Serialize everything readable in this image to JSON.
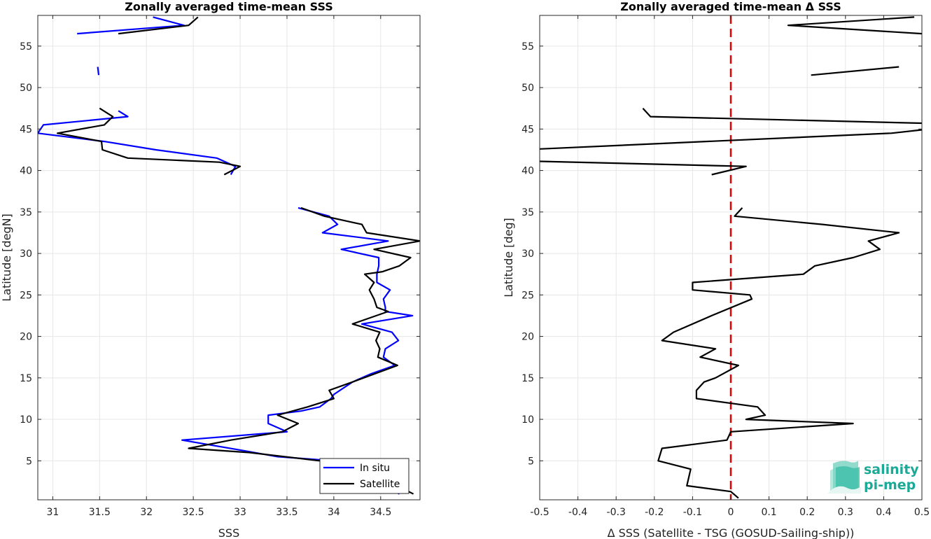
{
  "colors": {
    "in_situ": "#0000ff",
    "satellite": "#000000",
    "zero_line": "#e00000",
    "grid": "#e6e6e6",
    "logo": "#1aaa97"
  },
  "logo": {
    "line1": "salinity",
    "line2": "pi-mep",
    "icon": "wave-stack-icon"
  },
  "chart_data": [
    {
      "type": "line",
      "title": "Zonally averaged time-mean SSS",
      "xlabel": "SSS",
      "ylabel": "Latitude [degN]",
      "xlim": [
        30.84,
        34.92
      ],
      "ylim": [
        0.3,
        58.7
      ],
      "xticks": [
        31,
        31.5,
        32,
        32.5,
        33,
        33.5,
        34,
        34.5
      ],
      "xtick_labels": [
        "31",
        "31.5",
        "32",
        "32.5",
        "33",
        "33.5",
        "34",
        "34.5"
      ],
      "yticks": [
        5,
        10,
        15,
        20,
        25,
        30,
        35,
        40,
        45,
        50,
        55
      ],
      "ytick_labels": [
        "5",
        "10",
        "15",
        "20",
        "25",
        "30",
        "35",
        "40",
        "45",
        "50",
        "55"
      ],
      "grid": true,
      "legend": {
        "placement": "bottom-right",
        "entries": [
          "In situ",
          "Satellite"
        ]
      },
      "series": [
        {
          "name": "In situ",
          "color": "#0000ff",
          "segments": [
            [
              [
                32.07,
                58.5
              ],
              [
                32.4,
                57.5
              ],
              [
                31.26,
                56.5
              ]
            ],
            [
              [
                31.48,
                52.5
              ],
              [
                31.49,
                51.5
              ]
            ],
            [
              [
                31.7,
                47.2
              ],
              [
                31.8,
                46.5
              ],
              [
                30.9,
                45.5
              ],
              [
                30.84,
                44.5
              ],
              [
                31.55,
                43.5
              ],
              [
                32.1,
                42.5
              ],
              [
                32.75,
                41.5
              ],
              [
                32.95,
                40.5
              ],
              [
                32.9,
                39.5
              ]
            ],
            [
              [
                33.62,
                35.5
              ],
              [
                33.95,
                34.5
              ],
              [
                34.04,
                33.5
              ],
              [
                33.88,
                32.5
              ],
              [
                34.58,
                31.5
              ],
              [
                34.08,
                30.5
              ],
              [
                34.48,
                29.5
              ],
              [
                34.48,
                28.5
              ],
              [
                34.46,
                27.5
              ],
              [
                34.46,
                26.5
              ],
              [
                34.6,
                25.6
              ],
              [
                34.53,
                24.5
              ],
              [
                34.55,
                23.5
              ],
              [
                34.55,
                23.0
              ],
              [
                34.84,
                22.5
              ],
              [
                34.3,
                21.5
              ],
              [
                34.62,
                20.5
              ],
              [
                34.69,
                19.5
              ],
              [
                34.55,
                18.5
              ],
              [
                34.53,
                17.5
              ],
              [
                34.65,
                16.5
              ],
              [
                34.4,
                15.5
              ],
              [
                34.2,
                14.5
              ],
              [
                34.0,
                13.0
              ],
              [
                33.97,
                12.5
              ],
              [
                33.85,
                11.5
              ],
              [
                33.65,
                11.0
              ],
              [
                33.3,
                10.5
              ],
              [
                33.3,
                9.5
              ],
              [
                33.5,
                8.5
              ],
              [
                32.38,
                7.5
              ],
              [
                33.05,
                6.2
              ],
              [
                33.4,
                5.5
              ],
              [
                34.0,
                5.0
              ],
              [
                34.7,
                1.0
              ]
            ]
          ]
        },
        {
          "name": "Satellite",
          "color": "#000000",
          "segments": [
            [
              [
                32.55,
                58.5
              ],
              [
                32.45,
                57.5
              ],
              [
                31.7,
                56.5
              ]
            ],
            [
              [
                31.5,
                47.5
              ],
              [
                31.64,
                46.5
              ],
              [
                31.55,
                45.5
              ],
              [
                31.05,
                44.5
              ],
              [
                31.52,
                43.5
              ],
              [
                31.53,
                42.5
              ],
              [
                31.8,
                41.5
              ],
              [
                32.78,
                41.0
              ],
              [
                33.0,
                40.5
              ],
              [
                32.83,
                39.5
              ]
            ],
            [
              [
                33.65,
                35.5
              ],
              [
                33.9,
                34.5
              ],
              [
                34.3,
                33.5
              ],
              [
                34.35,
                32.5
              ],
              [
                34.92,
                31.5
              ],
              [
                34.43,
                30.5
              ],
              [
                34.82,
                29.5
              ],
              [
                34.7,
                28.5
              ],
              [
                34.52,
                27.8
              ],
              [
                34.33,
                27.5
              ],
              [
                34.43,
                26.5
              ],
              [
                34.38,
                25.6
              ],
              [
                34.43,
                24.5
              ],
              [
                34.46,
                23.5
              ],
              [
                34.58,
                23.0
              ],
              [
                34.2,
                21.5
              ],
              [
                34.49,
                20.5
              ],
              [
                34.45,
                19.5
              ],
              [
                34.49,
                18.5
              ],
              [
                34.47,
                17.5
              ],
              [
                34.68,
                16.5
              ],
              [
                34.2,
                14.5
              ],
              [
                33.95,
                13.5
              ],
              [
                34.0,
                12.5
              ],
              [
                33.72,
                11.5
              ],
              [
                33.4,
                10.5
              ],
              [
                33.62,
                9.5
              ],
              [
                33.45,
                8.5
              ],
              [
                32.9,
                7.5
              ],
              [
                32.45,
                6.5
              ],
              [
                33.1,
                6.0
              ],
              [
                33.85,
                5.0
              ],
              [
                34.5,
                3.0
              ],
              [
                34.85,
                1.0
              ]
            ]
          ]
        }
      ]
    },
    {
      "type": "line",
      "title": "Zonally averaged time-mean Δ SSS",
      "xlabel": "Δ SSS (Satellite - TSG (GOSUD-Sailing-ship))",
      "ylabel": "Latitude [deg]",
      "xlim": [
        -0.5,
        0.5
      ],
      "ylim": [
        0.3,
        58.7
      ],
      "xticks": [
        -0.5,
        -0.4,
        -0.3,
        -0.2,
        -0.1,
        0,
        0.1,
        0.2,
        0.3,
        0.4,
        0.5
      ],
      "xtick_labels": [
        "-0.5",
        "-0.4",
        "-0.3",
        "-0.2",
        "-0.1",
        "0",
        "0.1",
        "0.2",
        "0.3",
        "0.4",
        "0.5"
      ],
      "yticks": [
        5,
        10,
        15,
        20,
        25,
        30,
        35,
        40,
        45,
        50,
        55
      ],
      "ytick_labels": [
        "5",
        "10",
        "15",
        "20",
        "25",
        "30",
        "35",
        "40",
        "45",
        "50",
        "55"
      ],
      "grid": true,
      "zero_line": {
        "x": 0,
        "style": "dashed"
      },
      "series": [
        {
          "name": "",
          "color": "#000000",
          "segments": [
            [
              [
                0.48,
                58.5
              ],
              [
                0.15,
                57.5
              ],
              [
                0.5,
                56.5
              ]
            ],
            [
              [
                0.44,
                52.5
              ],
              [
                0.21,
                51.5
              ]
            ],
            [
              [
                -0.23,
                47.5
              ],
              [
                -0.21,
                46.5
              ],
              [
                0.5,
                45.7
              ]
            ],
            [
              [
                0.5,
                44.9
              ],
              [
                0.42,
                44.5
              ],
              [
                -0.5,
                42.6
              ]
            ],
            [
              [
                -0.5,
                41.1
              ],
              [
                0.04,
                40.5
              ],
              [
                -0.05,
                39.5
              ]
            ],
            [
              [
                0.03,
                35.5
              ],
              [
                0.01,
                34.5
              ],
              [
                0.24,
                33.5
              ],
              [
                0.44,
                32.5
              ],
              [
                0.36,
                31.5
              ],
              [
                0.39,
                30.5
              ],
              [
                0.32,
                29.5
              ],
              [
                0.22,
                28.5
              ],
              [
                0.19,
                27.5
              ],
              [
                -0.1,
                26.5
              ],
              [
                -0.1,
                25.6
              ],
              [
                0.05,
                25.0
              ],
              [
                0.055,
                24.5
              ],
              [
                -0.05,
                22.5
              ],
              [
                -0.15,
                20.5
              ],
              [
                -0.18,
                19.5
              ],
              [
                -0.04,
                18.5
              ],
              [
                -0.08,
                17.5
              ],
              [
                0.02,
                16.5
              ],
              [
                -0.04,
                15.0
              ],
              [
                -0.07,
                14.5
              ],
              [
                -0.09,
                13.5
              ],
              [
                -0.09,
                12.5
              ],
              [
                0.07,
                11.5
              ],
              [
                0.09,
                10.5
              ],
              [
                0.04,
                10.0
              ],
              [
                0.32,
                9.5
              ],
              [
                0.0,
                8.5
              ],
              [
                -0.01,
                7.5
              ],
              [
                -0.18,
                6.5
              ],
              [
                -0.19,
                5.0
              ],
              [
                -0.105,
                4.0
              ],
              [
                -0.115,
                2.0
              ],
              [
                0.0,
                1.3
              ],
              [
                0.02,
                0.5
              ]
            ]
          ]
        }
      ]
    }
  ]
}
